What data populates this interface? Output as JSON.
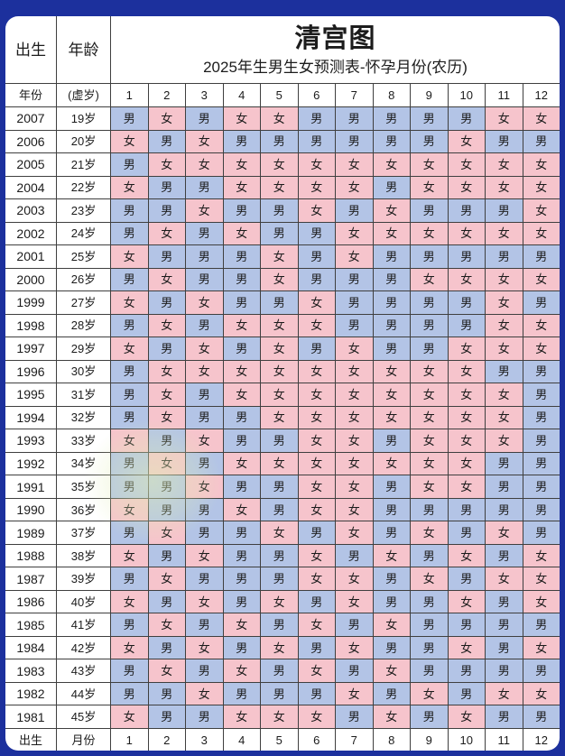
{
  "chart_data": {
    "type": "table",
    "title": "清宫图",
    "subtitle": "2025年生男生女预测表-怀孕月份(农历)",
    "corner_labels": {
      "top_left": "出生",
      "top_mid": "年龄",
      "row_header_left": "年份",
      "row_header_mid": "(虚岁)",
      "bottom_left": "出生",
      "bottom_mid": "月份"
    },
    "months": [
      "1",
      "2",
      "3",
      "4",
      "5",
      "6",
      "7",
      "8",
      "9",
      "10",
      "11",
      "12"
    ],
    "male_char": "男",
    "female_char": "女",
    "rows": [
      {
        "year": "2007",
        "age": "19岁",
        "cells": [
          "男",
          "女",
          "男",
          "女",
          "女",
          "男",
          "男",
          "男",
          "男",
          "男",
          "女",
          "女"
        ]
      },
      {
        "year": "2006",
        "age": "20岁",
        "cells": [
          "女",
          "男",
          "女",
          "男",
          "男",
          "男",
          "男",
          "男",
          "男",
          "女",
          "男",
          "男"
        ]
      },
      {
        "year": "2005",
        "age": "21岁",
        "cells": [
          "男",
          "女",
          "女",
          "女",
          "女",
          "女",
          "女",
          "女",
          "女",
          "女",
          "女",
          "女"
        ]
      },
      {
        "year": "2004",
        "age": "22岁",
        "cells": [
          "女",
          "男",
          "男",
          "女",
          "女",
          "女",
          "女",
          "男",
          "女",
          "女",
          "女",
          "女"
        ]
      },
      {
        "year": "2003",
        "age": "23岁",
        "cells": [
          "男",
          "男",
          "女",
          "男",
          "男",
          "女",
          "男",
          "女",
          "男",
          "男",
          "男",
          "女"
        ]
      },
      {
        "year": "2002",
        "age": "24岁",
        "cells": [
          "男",
          "女",
          "男",
          "女",
          "男",
          "男",
          "女",
          "女",
          "女",
          "女",
          "女",
          "女"
        ]
      },
      {
        "year": "2001",
        "age": "25岁",
        "cells": [
          "女",
          "男",
          "男",
          "男",
          "女",
          "男",
          "女",
          "男",
          "男",
          "男",
          "男",
          "男"
        ]
      },
      {
        "year": "2000",
        "age": "26岁",
        "cells": [
          "男",
          "女",
          "男",
          "男",
          "女",
          "男",
          "男",
          "男",
          "女",
          "女",
          "女",
          "女"
        ]
      },
      {
        "year": "1999",
        "age": "27岁",
        "cells": [
          "女",
          "男",
          "女",
          "男",
          "男",
          "女",
          "男",
          "男",
          "男",
          "男",
          "女",
          "男"
        ]
      },
      {
        "year": "1998",
        "age": "28岁",
        "cells": [
          "男",
          "女",
          "男",
          "女",
          "女",
          "女",
          "男",
          "男",
          "男",
          "男",
          "女",
          "女"
        ]
      },
      {
        "year": "1997",
        "age": "29岁",
        "cells": [
          "女",
          "男",
          "女",
          "男",
          "女",
          "男",
          "女",
          "男",
          "男",
          "女",
          "女",
          "女"
        ]
      },
      {
        "year": "1996",
        "age": "30岁",
        "cells": [
          "男",
          "女",
          "女",
          "女",
          "女",
          "女",
          "女",
          "女",
          "女",
          "女",
          "男",
          "男"
        ]
      },
      {
        "year": "1995",
        "age": "31岁",
        "cells": [
          "男",
          "女",
          "男",
          "女",
          "女",
          "女",
          "女",
          "女",
          "女",
          "女",
          "女",
          "男"
        ]
      },
      {
        "year": "1994",
        "age": "32岁",
        "cells": [
          "男",
          "女",
          "男",
          "男",
          "女",
          "女",
          "女",
          "女",
          "女",
          "女",
          "女",
          "男"
        ]
      },
      {
        "year": "1993",
        "age": "33岁",
        "cells": [
          "女",
          "男",
          "女",
          "男",
          "男",
          "女",
          "女",
          "男",
          "女",
          "女",
          "女",
          "男"
        ]
      },
      {
        "year": "1992",
        "age": "34岁",
        "cells": [
          "男",
          "女",
          "男",
          "女",
          "女",
          "女",
          "女",
          "女",
          "女",
          "女",
          "男",
          "男"
        ]
      },
      {
        "year": "1991",
        "age": "35岁",
        "cells": [
          "男",
          "男",
          "女",
          "男",
          "男",
          "女",
          "女",
          "男",
          "女",
          "女",
          "男",
          "男"
        ]
      },
      {
        "year": "1990",
        "age": "36岁",
        "cells": [
          "女",
          "男",
          "男",
          "女",
          "男",
          "女",
          "女",
          "男",
          "男",
          "男",
          "男",
          "男"
        ]
      },
      {
        "year": "1989",
        "age": "37岁",
        "cells": [
          "男",
          "女",
          "男",
          "男",
          "女",
          "男",
          "女",
          "男",
          "女",
          "男",
          "女",
          "男"
        ]
      },
      {
        "year": "1988",
        "age": "38岁",
        "cells": [
          "女",
          "男",
          "女",
          "男",
          "男",
          "女",
          "男",
          "女",
          "男",
          "女",
          "男",
          "女"
        ]
      },
      {
        "year": "1987",
        "age": "39岁",
        "cells": [
          "男",
          "女",
          "男",
          "男",
          "男",
          "女",
          "女",
          "男",
          "女",
          "男",
          "女",
          "女"
        ]
      },
      {
        "year": "1986",
        "age": "40岁",
        "cells": [
          "女",
          "男",
          "女",
          "男",
          "女",
          "男",
          "女",
          "男",
          "男",
          "女",
          "男",
          "女"
        ]
      },
      {
        "year": "1985",
        "age": "41岁",
        "cells": [
          "男",
          "女",
          "男",
          "女",
          "男",
          "女",
          "男",
          "女",
          "男",
          "男",
          "男",
          "男"
        ]
      },
      {
        "year": "1984",
        "age": "42岁",
        "cells": [
          "女",
          "男",
          "女",
          "男",
          "女",
          "男",
          "女",
          "男",
          "男",
          "女",
          "男",
          "女"
        ]
      },
      {
        "year": "1983",
        "age": "43岁",
        "cells": [
          "男",
          "女",
          "男",
          "女",
          "男",
          "女",
          "男",
          "女",
          "男",
          "男",
          "男",
          "男"
        ]
      },
      {
        "year": "1982",
        "age": "44岁",
        "cells": [
          "男",
          "男",
          "女",
          "男",
          "男",
          "男",
          "女",
          "男",
          "女",
          "男",
          "女",
          "女"
        ]
      },
      {
        "year": "1981",
        "age": "45岁",
        "cells": [
          "女",
          "男",
          "男",
          "女",
          "女",
          "女",
          "男",
          "女",
          "男",
          "女",
          "男",
          "男"
        ]
      }
    ]
  },
  "colors": {
    "background": "#1c309d",
    "panel": "#ffffff",
    "male_cell": "#b3c4e6",
    "female_cell": "#f6c4cc",
    "grid_line": "#3f3f3f",
    "text": "#1c1c1c"
  }
}
